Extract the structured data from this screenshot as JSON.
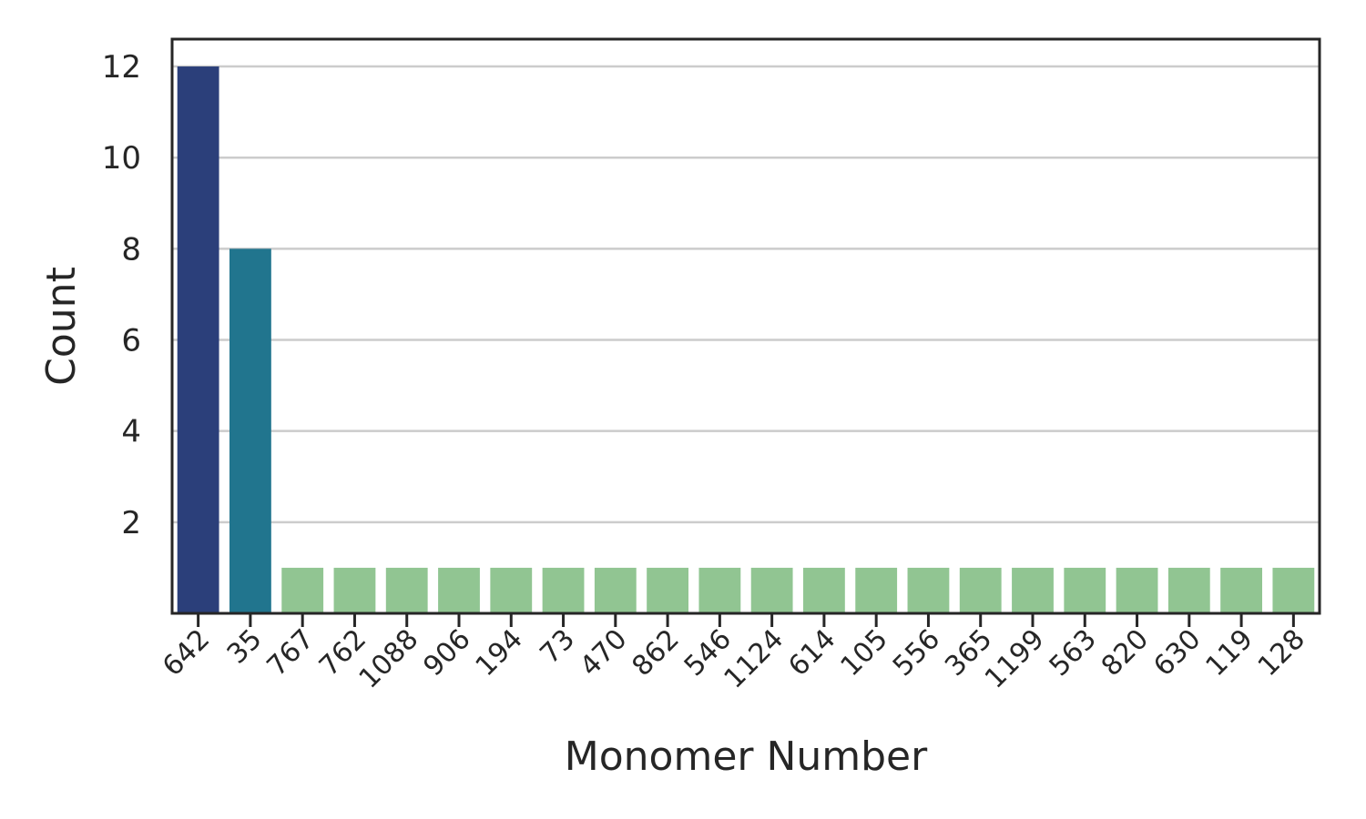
{
  "chart_data": {
    "type": "bar",
    "xlabel": "Monomer Number",
    "ylabel": "Count",
    "ylim": [
      0,
      12.6
    ],
    "yticks": [
      2,
      4,
      6,
      8,
      10,
      12
    ],
    "grid": "horizontal",
    "categories": [
      "642",
      "35",
      "767",
      "762",
      "1088",
      "906",
      "194",
      "73",
      "470",
      "862",
      "546",
      "1124",
      "614",
      "105",
      "556",
      "365",
      "1199",
      "563",
      "820",
      "630",
      "119",
      "128"
    ],
    "values": [
      12,
      8,
      1,
      1,
      1,
      1,
      1,
      1,
      1,
      1,
      1,
      1,
      1,
      1,
      1,
      1,
      1,
      1,
      1,
      1,
      1,
      1
    ],
    "colors": [
      "#2b3f7a",
      "#21758e",
      "#91c592",
      "#91c592",
      "#91c592",
      "#91c592",
      "#91c592",
      "#91c592",
      "#91c592",
      "#91c592",
      "#91c592",
      "#91c592",
      "#91c592",
      "#91c592",
      "#91c592",
      "#91c592",
      "#91c592",
      "#91c592",
      "#91c592",
      "#91c592",
      "#91c592",
      "#91c592"
    ]
  }
}
